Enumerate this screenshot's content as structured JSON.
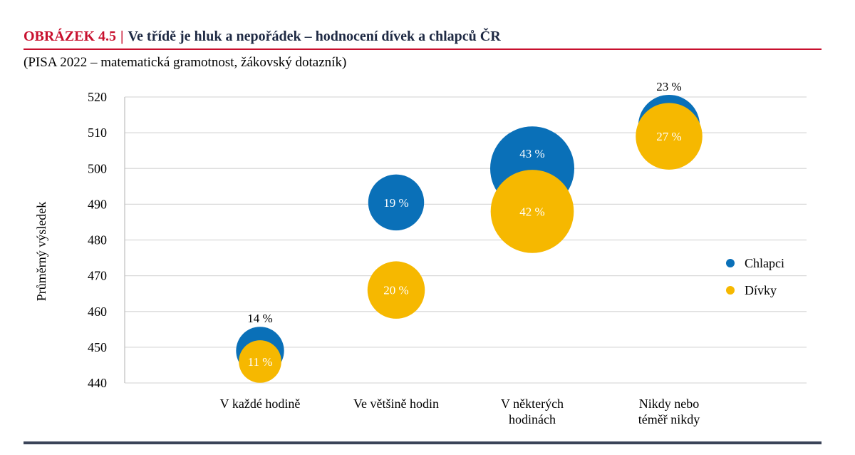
{
  "figure": {
    "label": "OBRÁZEK 4.5",
    "separator": "|",
    "title": "Ve třídě je hluk a nepořádek – hodnocení dívek a chlapců ČR",
    "subtitle": "(PISA 2022 – matematická gramotnost, žákovský dotazník)"
  },
  "colors": {
    "chlapci": "#0a70b8",
    "divky": "#f6b800",
    "grid": "#d9d9d9",
    "axis": "#bfbfbf"
  },
  "chart_data": {
    "type": "scatter",
    "subtype": "bubble",
    "ylabel": "Průměrný výsledek",
    "xlabel": "",
    "ylim": [
      440,
      520
    ],
    "yticks": [
      "440",
      "450",
      "460",
      "470",
      "480",
      "490",
      "500",
      "510",
      "520"
    ],
    "grid": true,
    "legend_position": "right",
    "categories": [
      [
        "V každé hodině"
      ],
      [
        "Ve většině hodin"
      ],
      [
        "V některých",
        "hodinách"
      ],
      [
        "Nikdy nebo",
        "téměř nikdy"
      ]
    ],
    "series": [
      {
        "name": "Chlapci",
        "color": "#0a70b8",
        "points": [
          {
            "category": 0,
            "y": 449,
            "size": 14,
            "label": "14 %"
          },
          {
            "category": 1,
            "y": 490.5,
            "size": 19,
            "label": "19 %"
          },
          {
            "category": 2,
            "y": 500,
            "size": 43,
            "label": "43 %"
          },
          {
            "category": 3,
            "y": 512,
            "size": 23,
            "label": "23 %"
          }
        ]
      },
      {
        "name": "Dívky",
        "color": "#f6b800",
        "points": [
          {
            "category": 0,
            "y": 446,
            "size": 11,
            "label": "11 %"
          },
          {
            "category": 1,
            "y": 466,
            "size": 20,
            "label": "20 %"
          },
          {
            "category": 2,
            "y": 488,
            "size": 42,
            "label": "42 %"
          },
          {
            "category": 3,
            "y": 509,
            "size": 27,
            "label": "27 %"
          }
        ]
      }
    ]
  }
}
